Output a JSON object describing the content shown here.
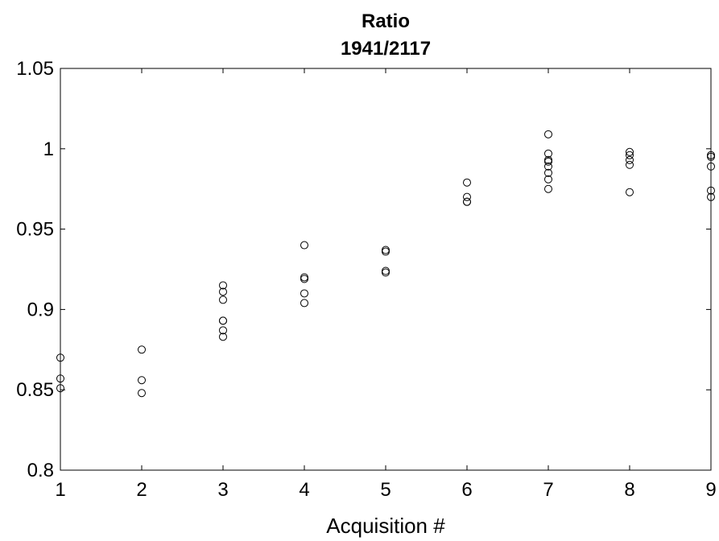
{
  "chart_data": {
    "type": "scatter",
    "title": "Ratio",
    "subtitle": "1941/2117",
    "xlabel": "Acquisition #",
    "ylabel": "",
    "xlim": [
      1,
      9
    ],
    "ylim": [
      0.8,
      1.05
    ],
    "xticks": [
      "1",
      "2",
      "3",
      "4",
      "5",
      "6",
      "7",
      "8",
      "9"
    ],
    "yticks": [
      "0.8",
      "0.85",
      "0.9",
      "0.95",
      "1",
      "1.05"
    ],
    "grid": false,
    "marker": "open-circle",
    "color": "#000000",
    "series": [
      {
        "points": [
          [
            1,
            0.87
          ],
          [
            1,
            0.857
          ],
          [
            1,
            0.851
          ],
          [
            2,
            0.875
          ],
          [
            2,
            0.856
          ],
          [
            2,
            0.848
          ],
          [
            3,
            0.915
          ],
          [
            3,
            0.911
          ],
          [
            3,
            0.906
          ],
          [
            3,
            0.893
          ],
          [
            3,
            0.893
          ],
          [
            3,
            0.887
          ],
          [
            3,
            0.883
          ],
          [
            4,
            0.94
          ],
          [
            4,
            0.92
          ],
          [
            4,
            0.919
          ],
          [
            4,
            0.91
          ],
          [
            4,
            0.904
          ],
          [
            5,
            0.937
          ],
          [
            5,
            0.936
          ],
          [
            5,
            0.924
          ],
          [
            5,
            0.923
          ],
          [
            6,
            0.979
          ],
          [
            6,
            0.97
          ],
          [
            6,
            0.967
          ],
          [
            6,
            0.967
          ],
          [
            7,
            1.009
          ],
          [
            7,
            0.997
          ],
          [
            7,
            0.993
          ],
          [
            7,
            0.992
          ],
          [
            7,
            0.989
          ],
          [
            7,
            0.985
          ],
          [
            7,
            0.981
          ],
          [
            7,
            0.975
          ],
          [
            8,
            0.998
          ],
          [
            8,
            0.996
          ],
          [
            8,
            0.993
          ],
          [
            8,
            0.99
          ],
          [
            8,
            0.973
          ],
          [
            9,
            0.996
          ],
          [
            9,
            0.995
          ],
          [
            9,
            0.989
          ],
          [
            9,
            0.974
          ],
          [
            9,
            0.97
          ]
        ]
      }
    ]
  }
}
